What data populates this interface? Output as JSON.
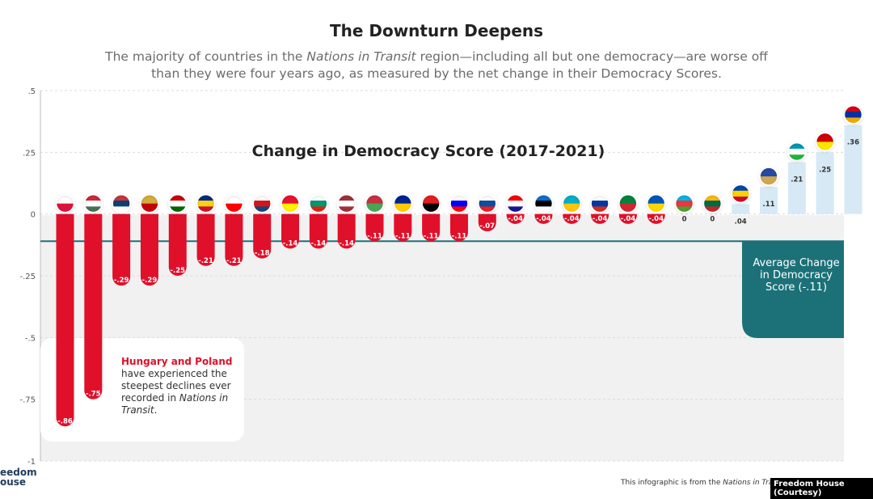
{
  "header": {
    "title": "The Downturn Deepens",
    "subtitle_pre": "The majority of countries in the ",
    "subtitle_em": "Nations in Transit",
    "subtitle_post": " region—including all but one democracy—are worse off than they were four years ago, as measured by the net change in their Democracy Scores."
  },
  "chart_data": {
    "type": "bar",
    "title": "Change in Democracy Score (2017-2021)",
    "y_ticks": [
      ".5",
      ".25",
      "0",
      "-.25",
      "-.5",
      "-.75",
      "-1"
    ],
    "ylim": [
      -1,
      0.5
    ],
    "values": [
      -0.86,
      -0.75,
      -0.29,
      -0.29,
      -0.25,
      -0.21,
      -0.21,
      -0.18,
      -0.14,
      -0.14,
      -0.14,
      -0.11,
      -0.11,
      -0.11,
      -0.11,
      -0.07,
      -0.04,
      -0.04,
      -0.04,
      -0.04,
      -0.04,
      -0.04,
      0,
      0,
      0.04,
      0.11,
      0.21,
      0.25,
      0.36
    ],
    "value_labels": [
      "-.86",
      "-.75",
      "-.29",
      "-.29",
      "-.25",
      "-.21",
      "-.21",
      "-.18",
      "-.14",
      "-.14",
      "-.14",
      "-.11",
      "-.11",
      "-.11",
      "-.11",
      "-.07",
      "-.04",
      "-.04",
      "-.04",
      "-.04",
      "-.04",
      "-.04",
      "0",
      "0",
      ".04",
      ".11",
      ".21",
      ".25",
      ".36"
    ],
    "flags": [
      "poland-flag-icon",
      "hungary-flag-icon",
      "serbia-flag-icon",
      "montenegro-flag-icon",
      "tajikistan-flag-icon",
      "romania-flag-icon",
      "georgia-flag-icon",
      "czechia-flag-icon",
      "kyrgyzstan-flag-icon",
      "bulgaria-flag-icon",
      "latvia-flag-icon",
      "belarus-flag-icon",
      "bosnia-flag-icon",
      "albania-flag-icon",
      "slovenia-flag-icon",
      "slovakia-flag-icon",
      "croatia-flag-icon",
      "estonia-flag-icon",
      "kazakhstan-flag-icon",
      "russia-flag-icon",
      "turkmenistan-flag-icon",
      "ukraine-flag-icon",
      "azerbaijan-flag-icon",
      "lithuania-flag-icon",
      "moldova-flag-icon",
      "kosovo-flag-icon",
      "uzbekistan-flag-icon",
      "north-macedonia-flag-icon",
      "armenia-flag-icon"
    ],
    "average": -0.11,
    "average_label": "Average Change in Democracy Score (-.11)",
    "colors": {
      "negative": "#e0102a",
      "positive": "#d6e9f5",
      "average": "#1c7178"
    }
  },
  "annotation": {
    "highlight": "Hungary and Poland",
    "text_pre": "have experienced the steepest declines ever recorded in ",
    "text_em": "Nations in Transit",
    "text_post": "."
  },
  "footer": {
    "brand_line1": "eedom",
    "brand_line2": "ouse",
    "note_pre": "This infographic is from the ",
    "note_em": "Nations in Transi",
    "credit": "Freedom House (Courtesy)"
  }
}
